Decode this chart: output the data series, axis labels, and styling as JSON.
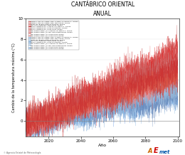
{
  "title": "CANTÁBRICO ORIENTAL",
  "subtitle": "ANUAL",
  "xlabel": "Año",
  "ylabel": "Cambio de la temperatura máxima (°C)",
  "xlim": [
    2006,
    2101
  ],
  "ylim": [
    -1.5,
    10
  ],
  "xticks": [
    2020,
    2040,
    2060,
    2080,
    2100
  ],
  "yticks": [
    0,
    2,
    4,
    6,
    8,
    10
  ],
  "x_start": 2006,
  "x_end": 2100,
  "n_years": 1140,
  "n_red_series": 11,
  "n_blue_series": 9,
  "background_color": "#ffffff",
  "footer_text": "© Agencia Estatal de Meteorología",
  "legend_entries_red": [
    "CNRM-CAMS-GS-CNRM-CM6: Cl.Mean-CCl.Mean+1° RCPen",
    "CNRM-CAMS-GS-CNRM-CM6: SM44-RCa4, RCPen",
    "ICHEC-EC-EARTH-KNMI-RACMO22S, RCPen",
    "IPSL-IPSL-CM5a-MR: SM44-RCa4, RCPen",
    "MOHC-HadGEM-GS: Cl.Mean-CCl.Mean+1° RCPen",
    "MOHC-HadGEM-GS: SM44-RACMO22S, RCPen",
    "MOHC-HadGEM-GS: SM44-RCa4, RCPen",
    "MPI-S4S4PI-SEM4-l_R: Cl.Mean-CCl.Mean+1° RCPen",
    "MPI-S4S4PI-SEM4-l_R: MPI-CDG-RSM4Sconm, RCPen",
    "MPI-S4S4PI-SEM4-l_R: SM44-RCa4, RCPen",
    "MPI-S4S4PI-SEM4-l_R: SM44 RCa4, RCPen"
  ],
  "legend_entries_blue": [
    "CNRM-CAMS-GS-CNRM-CM6: Cl.Mean-CCl.Mean+1° RCPen",
    "CNRM-CAMS-GS-CNRM-CM6: SM44-RCa4, RCPen",
    "ICHEC-EC-EARTH-KNMI-RACMO22S, RCPen",
    "IPSL-IPSL-CM5a-MR: SM44-RCa4, RCPen",
    "MOHC-HadGEM-GS: SM44-RACMO22S, RCPen",
    "MPI-S4S4PI-SEM4-l_R: Cl.Mean-CCl.Mean+1° RCPen",
    "MPI-S4S4PI-SEM4-l_R: MPI-CDG-RSM4Sconm, RCPen",
    "MPI-S4S4PI-SEM4-l_R: SM44-RCa4, RCPen",
    "MPI-S4S4PI-SEM4-l_R: SM44 RCa4, RCPen"
  ]
}
